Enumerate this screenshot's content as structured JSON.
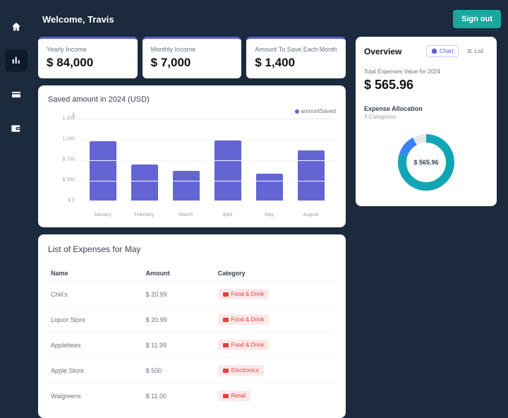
{
  "welcome": "Welcome, Travis",
  "signout": "Sign out",
  "stats": [
    {
      "label": "Yearly Income",
      "value": "$ 84,000"
    },
    {
      "label": "Monthly Income",
      "value": "$ 7,000"
    },
    {
      "label": "Amount To Save Each Month",
      "value": "$ 1,400"
    }
  ],
  "chart": {
    "title": "Saved amount in 2024 (USD)",
    "legend": "amountSaved",
    "currency_symbol": "$",
    "ymax": 1400,
    "yticks": [
      {
        "label": "1,400",
        "value": 1400
      },
      {
        "label": "1,050",
        "value": 1050
      },
      {
        "label": "$ 700",
        "value": 700
      },
      {
        "label": "$ 350",
        "value": 350
      },
      {
        "label": "$ 0",
        "value": 0
      }
    ],
    "bars": [
      {
        "label": "January",
        "value": 1010
      },
      {
        "label": "February",
        "value": 615
      },
      {
        "label": "March",
        "value": 505
      },
      {
        "label": "April",
        "value": 1025
      },
      {
        "label": "May",
        "value": 460
      },
      {
        "label": "August",
        "value": 860
      }
    ],
    "bar_color": "#6265d3"
  },
  "expenses": {
    "title": "List of Expenses for May",
    "cols": {
      "name": "Name",
      "amount": "Amount",
      "category": "Category"
    },
    "rows": [
      {
        "name": "Chili's",
        "amount": "$ 20.99",
        "category": "Food & Drink"
      },
      {
        "name": "Liquor Store",
        "amount": "$ 20.99",
        "category": "Food & Drink"
      },
      {
        "name": "Applebees",
        "amount": "$ 11.99",
        "category": "Food & Drink"
      },
      {
        "name": "Apple Store",
        "amount": "$ 500",
        "category": "Electronics"
      },
      {
        "name": "Walgreens",
        "amount": "$ 11.00",
        "category": "Retail"
      }
    ]
  },
  "overview": {
    "title": "Overview",
    "chart_btn": "Chart",
    "list_btn": "List",
    "sub": "Total Expenses Value for 2024",
    "value": "$ 565.96",
    "alloc": "Expense Allocation",
    "cat": "3 Categories",
    "donut_center": "$ 565.96",
    "donut": {
      "colors": [
        "#12a5b5",
        "#3b82f6",
        "#e5e7eb"
      ],
      "fractions": [
        0.8,
        0.12,
        0.08
      ]
    }
  }
}
